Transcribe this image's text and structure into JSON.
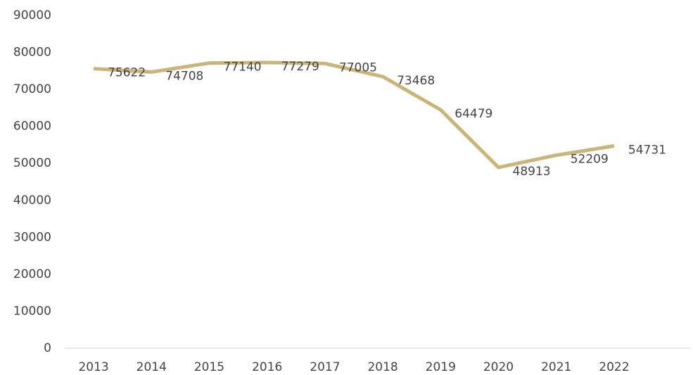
{
  "chart_data": {
    "type": "line",
    "categories": [
      "2013",
      "2014",
      "2015",
      "2016",
      "2017",
      "2018",
      "2019",
      "2020",
      "2021",
      "2022"
    ],
    "values": [
      75622,
      74708,
      77140,
      77279,
      77005,
      73468,
      64479,
      48913,
      52209,
      54731
    ],
    "color": "#c9b47a",
    "ylim": [
      0,
      90000
    ],
    "yticks": [
      0,
      10000,
      20000,
      30000,
      40000,
      50000,
      60000,
      70000,
      80000,
      90000
    ],
    "grid": false,
    "data_labels": true
  }
}
